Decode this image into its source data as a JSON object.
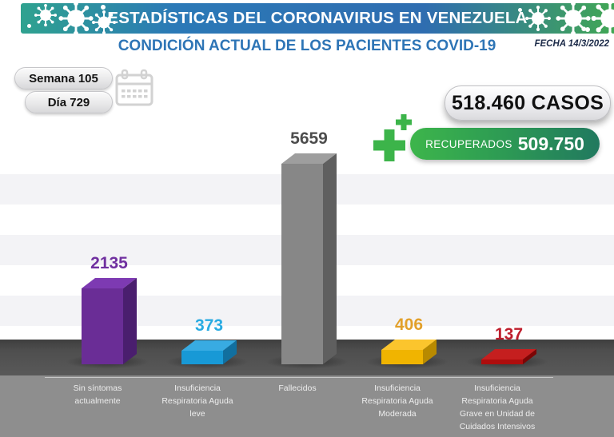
{
  "header": {
    "banner_title": "ESTADÍSTICAS DEL CORONAVIRUS EN VENEZUELA",
    "subtitle": "CONDICIÓN ACTUAL DE LOS PACIENTES COVID-19",
    "date_label": "FECHA 14/3/2022"
  },
  "counters": {
    "week_badge": "Semana 105",
    "day_badge": "Día 729",
    "cases_badge": "518.460 CASOS",
    "recovered_label": "RECUPERADOS",
    "recovered_value": "509.750"
  },
  "icons": {
    "banner_decorations": "virus-icon",
    "date_counter": "calendar-icon",
    "recovered": "medical-plus-icon"
  },
  "colors": {
    "banner_teal": "#2fa28f",
    "banner_blue": "#2b79b7",
    "banner_green": "#41a754",
    "accent_blue": "#2e75b6",
    "recovered_green": "#3cb44a",
    "recovered_teal": "#21795f",
    "floor_dark": "#4e4e4e",
    "floor_light": "#8e8e8e"
  },
  "chart_data": {
    "type": "bar",
    "title": "CONDICIÓN ACTUAL DE LOS PACIENTES COVID-19",
    "categories": [
      "Sin síntomas actualmente",
      "Insuficiencia Respiratoria Aguda leve",
      "Fallecidos",
      "Insuficiencia Respiratoria Aguda Moderada",
      "Insuficiencia Respiratoria Aguda Grave en Unidad de Cuidados Intensivos"
    ],
    "category_label_lines": [
      [
        "Sin síntomas",
        "actualmente"
      ],
      [
        "Insuficiencia",
        "Respiratoria Aguda",
        "leve"
      ],
      [
        "Fallecidos"
      ],
      [
        "Insuficiencia",
        "Respiratoria Aguda",
        "Moderada"
      ],
      [
        "Insuficiencia",
        "Respiratoria Aguda",
        "Grave en Unidad de",
        "Cuidados Intensivos"
      ]
    ],
    "values": [
      2135,
      373,
      5659,
      406,
      137
    ],
    "value_labels": [
      "2135",
      "373",
      "5659",
      "406",
      "137"
    ],
    "ylim": [
      0,
      5659
    ],
    "xlabel": "",
    "ylabel": "",
    "legend": "none",
    "grid": "horizontal-bands",
    "bar_style": "3d",
    "bar_colors": [
      {
        "front": "#6a2d96",
        "top": "#7d3ab2",
        "side": "#4a1e6e",
        "text": "#7030a0"
      },
      {
        "front": "#1899d6",
        "top": "#38abe2",
        "side": "#116f9f",
        "text": "#29abe2"
      },
      {
        "front": "#878787",
        "top": "#9e9e9e",
        "side": "#5f5f5f",
        "text": "#4d4d4d"
      },
      {
        "front": "#f0b400",
        "top": "#fbc52d",
        "side": "#b88a00",
        "text": "#e2a02a"
      },
      {
        "front": "#ae0d0d",
        "top": "#c51f1f",
        "side": "#7c0505",
        "text": "#bf1e2d"
      }
    ]
  }
}
